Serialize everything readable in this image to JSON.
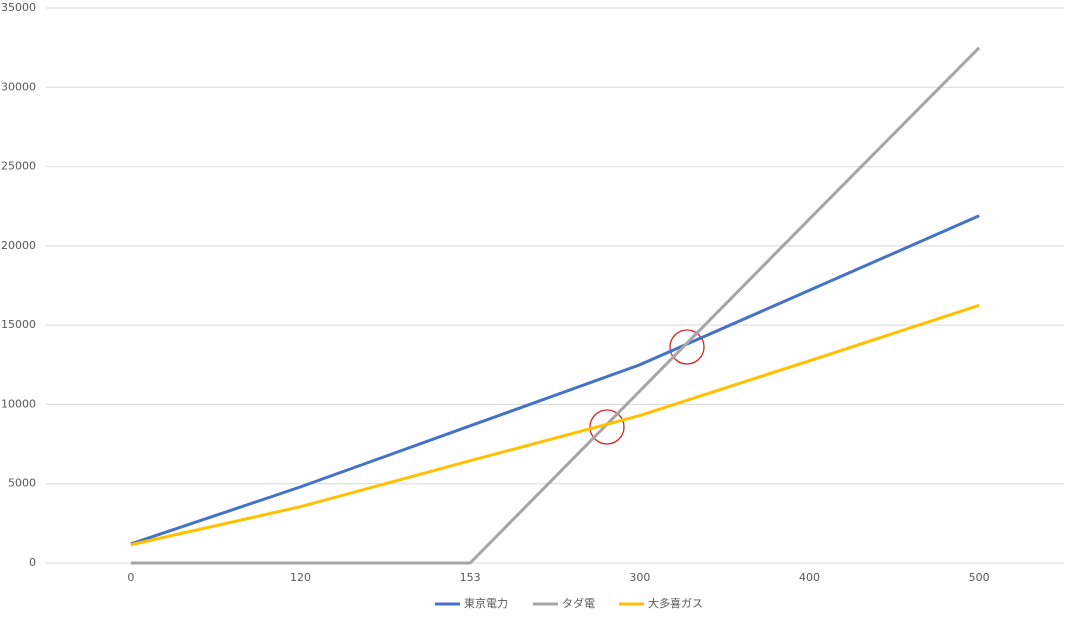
{
  "chart_data": {
    "type": "line",
    "categories": [
      "0",
      "120",
      "153",
      "300",
      "400",
      "500"
    ],
    "series": [
      {
        "name": "東京電力",
        "color": "#4472c4",
        "values": [
          1200,
          4800,
          8650,
          12500,
          17200,
          21900
        ]
      },
      {
        "name": "タダ電",
        "color": "#a5a5a5",
        "values": [
          0,
          0,
          0,
          10850,
          21700,
          32500
        ]
      },
      {
        "name": "大多喜ガス",
        "color": "#ffc000",
        "values": [
          1150,
          3550,
          6450,
          9300,
          12750,
          16250
        ]
      }
    ],
    "ylim": [
      0,
      35000
    ],
    "yticks": [
      0,
      5000,
      10000,
      15000,
      20000,
      25000,
      30000,
      35000
    ],
    "grid": true,
    "legend": "bottom"
  }
}
